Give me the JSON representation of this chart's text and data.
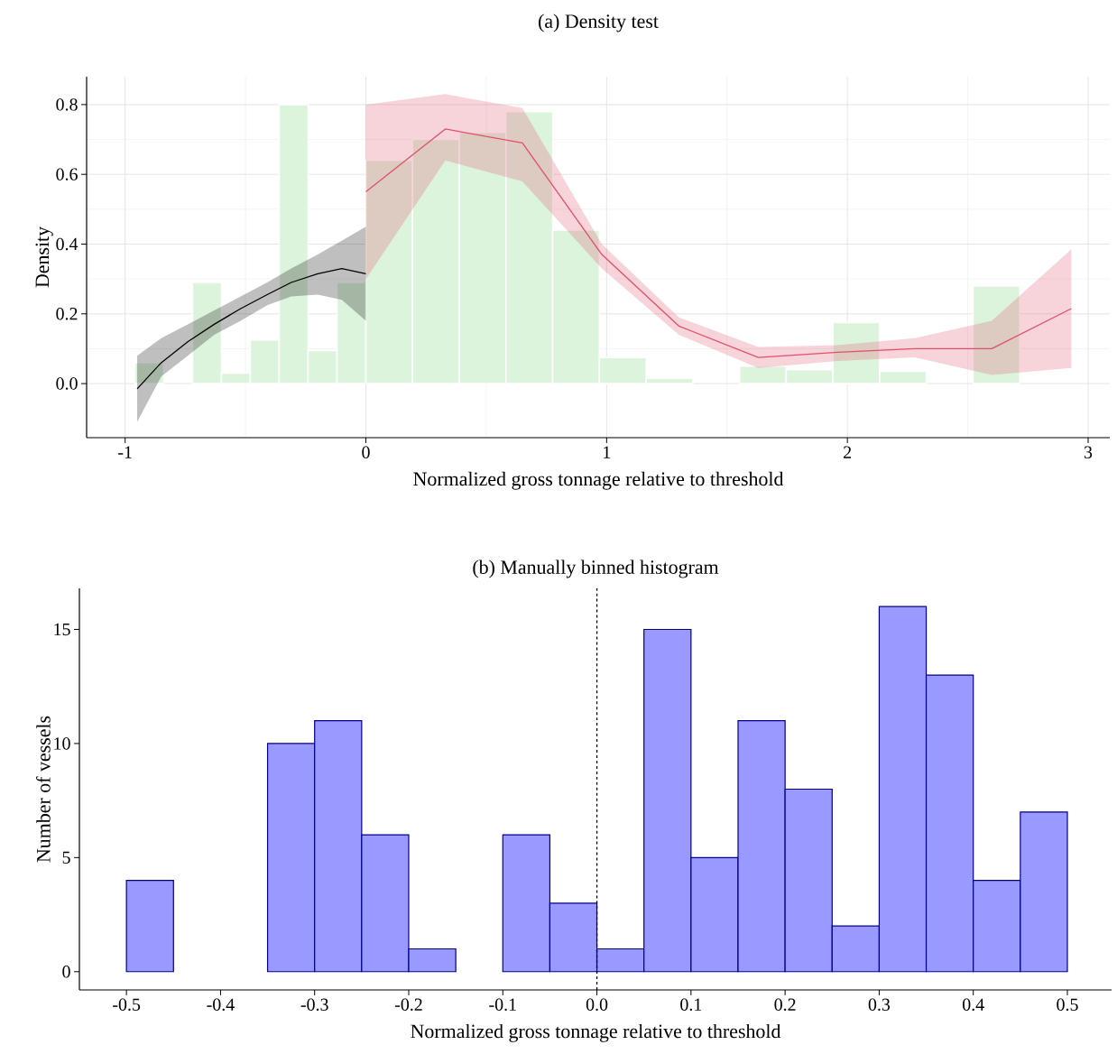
{
  "chart_data": [
    {
      "type": "line",
      "title": "(a) Density test",
      "xlabel": "Normalized gross tonnage relative to threshold",
      "ylabel": "Density",
      "xlim": [
        -1.16,
        3.09
      ],
      "ylim": [
        -0.155,
        0.88
      ],
      "xticks": [
        -1,
        0,
        1,
        2,
        3
      ],
      "yticks": [
        {
          "value": 0,
          "label": "0.0"
        },
        {
          "value": 0.2,
          "label": "0.2"
        },
        {
          "value": 0.4,
          "label": "0.4"
        },
        {
          "value": 0.6,
          "label": "0.6"
        },
        {
          "value": 0.8,
          "label": "0.8"
        }
      ],
      "grid": true,
      "series": [
        {
          "type": "histogram",
          "color": "#dcf3dc",
          "bins": [
            -0.96,
            -0.84,
            -0.72,
            -0.6,
            -0.48,
            -0.36,
            -0.24,
            -0.12,
            0,
            0.194,
            0.388,
            0.582,
            0.776,
            0.97,
            1.164,
            1.358,
            1.552,
            1.746,
            1.94,
            2.134,
            2.328,
            2.522,
            2.716
          ],
          "values": [
            0.06,
            0,
            0.29,
            0.03,
            0.125,
            0.8,
            0.095,
            0.29,
            0.64,
            0.7,
            0.72,
            0.78,
            0.44,
            0.075,
            0.015,
            0,
            0.05,
            0.04,
            0.175,
            0.035,
            0,
            0.28
          ]
        },
        {
          "type": "line",
          "color": "#000000",
          "x": [
            -0.95,
            -0.85,
            -0.74,
            -0.63,
            -0.52,
            -0.41,
            -0.31,
            -0.2,
            -0.1,
            0
          ],
          "values": [
            -0.015,
            0.06,
            0.12,
            0.17,
            0.215,
            0.255,
            0.29,
            0.315,
            0.33,
            0.315
          ],
          "lower": [
            -0.11,
            0.02,
            0.08,
            0.14,
            0.18,
            0.225,
            0.25,
            0.255,
            0.24,
            0.18
          ],
          "upper": [
            0.08,
            0.13,
            0.17,
            0.21,
            0.25,
            0.29,
            0.33,
            0.37,
            0.41,
            0.45
          ]
        },
        {
          "type": "line",
          "color": "#e0506a",
          "x": [
            0,
            0.33,
            0.65,
            0.98,
            1.3,
            1.63,
            1.96,
            2.28,
            2.6,
            2.93
          ],
          "values": [
            0.55,
            0.73,
            0.69,
            0.37,
            0.165,
            0.075,
            0.09,
            0.1,
            0.1,
            0.215
          ],
          "lower": [
            0.3,
            0.64,
            0.58,
            0.33,
            0.14,
            0.045,
            0.065,
            0.075,
            0.025,
            0.045
          ],
          "upper": [
            0.8,
            0.83,
            0.79,
            0.4,
            0.19,
            0.105,
            0.11,
            0.13,
            0.18,
            0.385
          ]
        }
      ]
    },
    {
      "type": "histogram",
      "title": "(b) Manually binned histogram",
      "xlabel": "Normalized gross tonnage relative to threshold",
      "ylabel": "Number of vessels",
      "color": "#9999ff",
      "bins": [
        -0.5,
        -0.45,
        -0.4,
        -0.35,
        -0.3,
        -0.25,
        -0.2,
        -0.15,
        -0.1,
        -0.05,
        0,
        0.05,
        0.1,
        0.15,
        0.2,
        0.25,
        0.3,
        0.35,
        0.4,
        0.45,
        0.5
      ],
      "values": [
        4,
        0,
        0,
        10,
        11,
        6,
        1,
        0,
        6,
        3,
        1,
        15,
        5,
        11,
        8,
        2,
        16,
        13,
        4,
        7
      ],
      "xlim": [
        -0.55,
        0.547
      ],
      "ylim": [
        -0.8,
        16.8
      ],
      "xticks": [
        -0.5,
        -0.4,
        -0.3,
        -0.2,
        -0.1,
        {
          "value": 0,
          "label": "0.0"
        },
        0.1,
        0.2,
        0.3,
        0.4,
        0.5
      ],
      "yticks": [
        0,
        5,
        10,
        15
      ],
      "ref_lines": [
        {
          "axis": "x",
          "value": 0,
          "line_style": "dashed",
          "color": "#000000"
        }
      ]
    }
  ]
}
